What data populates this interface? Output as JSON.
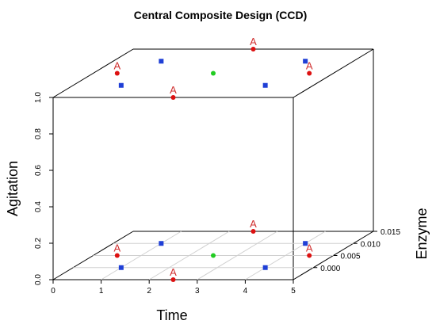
{
  "chart_data": {
    "type": "scatter",
    "projection": "3d",
    "title": "Central Composite Design (CCD)",
    "xlabel": "Time",
    "ylabel": "Enzyme",
    "zlabel": "Agitation",
    "xlim": [
      0,
      5
    ],
    "ylim": [
      -0.005,
      0.015
    ],
    "zlim": [
      0,
      1
    ],
    "x_ticks": [
      "0",
      "1",
      "2",
      "3",
      "4",
      "5"
    ],
    "y_ticks": [
      "0.000",
      "0.005",
      "0.010",
      "0.015"
    ],
    "z_ticks": [
      "0.0",
      "0.2",
      "0.4",
      "0.6",
      "0.8",
      "1.0"
    ],
    "grid": true,
    "colors": {
      "factorial": "#1f3fd6",
      "axial": "#dd1111",
      "center": "#22cc22",
      "label": "#d03030"
    },
    "series": [
      {
        "group": "factorial",
        "marker": "square",
        "x": [
          1,
          4,
          1,
          4,
          1,
          4,
          1,
          4
        ],
        "y": [
          0,
          0,
          0.01,
          0.01,
          0,
          0,
          0.01,
          0.01
        ],
        "z": [
          0,
          0,
          0,
          0,
          1,
          1,
          1,
          1
        ]
      },
      {
        "group": "axial",
        "marker": "circle",
        "x": [
          2.5,
          2.5,
          0.5,
          4.5,
          2.5,
          2.5,
          0.5,
          4.5
        ],
        "y": [
          -0.005,
          0.015,
          0.005,
          0.005,
          -0.005,
          0.015,
          0.005,
          0.005
        ],
        "z": [
          0,
          0,
          0,
          0,
          1,
          1,
          1,
          1
        ],
        "labels": [
          "A",
          "A",
          "A",
          "A",
          "A",
          "A",
          "A",
          "A"
        ]
      },
      {
        "group": "center",
        "marker": "circle",
        "x": [
          2.5,
          2.5
        ],
        "y": [
          0.005,
          0.005
        ],
        "z": [
          0,
          1
        ]
      }
    ]
  }
}
